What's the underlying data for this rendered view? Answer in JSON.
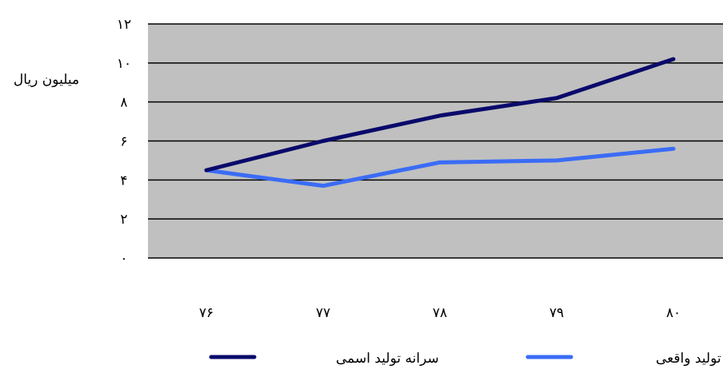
{
  "chart_data": {
    "type": "line",
    "title": "",
    "xlabel": "",
    "ylabel": "میلیون ریال",
    "categories": [
      "۷۶",
      "۷۷",
      "۷۸",
      "۷۹",
      "۸۰"
    ],
    "series": [
      {
        "name": "سرانه تولید اسمی",
        "color": "#0a0a6b",
        "values": [
          4.5,
          6.0,
          7.3,
          8.2,
          10.2
        ]
      },
      {
        "name": "سرانه تولید واقعی",
        "color": "#3a6cf5",
        "values": [
          4.5,
          3.7,
          4.9,
          5.0,
          5.6
        ]
      }
    ],
    "ylim": [
      0,
      12
    ],
    "yticks": [
      0,
      2,
      4,
      6,
      8,
      10,
      12
    ],
    "ytick_labels": [
      "۰",
      "۲",
      "۴",
      "۶",
      "۸",
      "۱۰",
      "۱۲"
    ],
    "grid": true,
    "plot_background": "#c0c0c0",
    "legend_position": "bottom"
  }
}
